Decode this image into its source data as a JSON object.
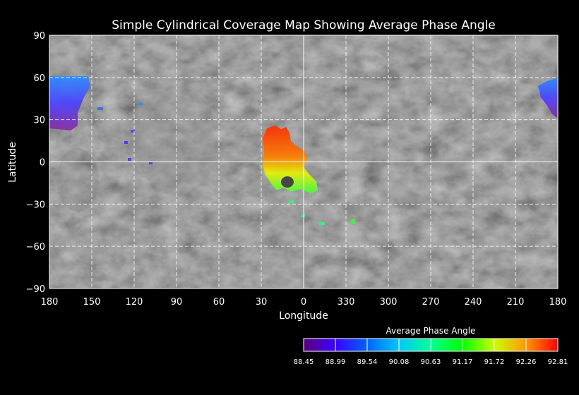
{
  "map": {
    "title": "Simple Cylindrical Coverage Map Showing Average Phase Angle",
    "xlabel": "Longitude",
    "ylabel": "Latitude",
    "x_ticks": [
      "180",
      "150",
      "120",
      "90",
      "60",
      "30",
      "0",
      "330",
      "300",
      "270",
      "240",
      "210",
      "180"
    ],
    "y_ticks": [
      {
        "value": 90,
        "label": "90"
      },
      {
        "value": 60,
        "label": "60"
      },
      {
        "value": 30,
        "label": "30"
      },
      {
        "value": 0,
        "label": "0"
      },
      {
        "value": -30,
        "label": "−30"
      },
      {
        "value": -60,
        "label": "−60"
      },
      {
        "value": -90,
        "label": "−90"
      }
    ],
    "ylim": [
      -90,
      90
    ],
    "grid": true,
    "legend": {
      "title": "Average Phase Angle",
      "labels": [
        "88.45",
        "88.99",
        "89.54",
        "90.08",
        "90.63",
        "91.17",
        "91.72",
        "92.26",
        "92.81"
      ],
      "range": [
        88.45,
        92.81
      ]
    }
  },
  "colors": {
    "background": "#000000",
    "grid": "#ffffff",
    "ramp": [
      "#5a0078",
      "#3c00ff",
      "#0064ff",
      "#00c8ff",
      "#00ff96",
      "#00ff00",
      "#c8ff00",
      "#ff9600",
      "#ff0000"
    ]
  }
}
